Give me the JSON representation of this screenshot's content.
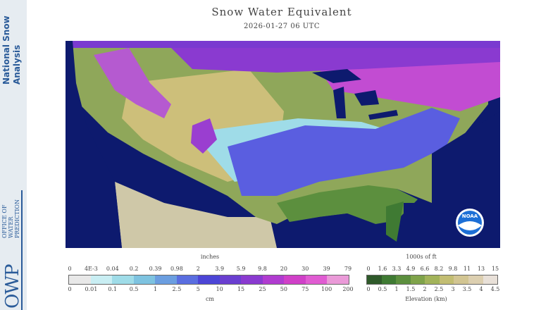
{
  "header": {
    "title": "Snow Water Equivalent",
    "timestamp": "2026-01-27 06 UTC"
  },
  "sidebar": {
    "brand_line1": "National Snow",
    "brand_line2": "Analysis",
    "owp_letters": "OWP",
    "owp_words": [
      "OFFICE OF",
      "WATER",
      "PREDICTION"
    ]
  },
  "logo": {
    "text": "NOAA"
  },
  "swe_legend": {
    "top_unit": "inches",
    "bottom_unit": "cm",
    "inch_ticks": [
      "0",
      "4E-3",
      "0.04",
      "0.2",
      "0.39",
      "0.98",
      "2",
      "3.9",
      "5.9",
      "9.8",
      "20",
      "30",
      "39",
      "79"
    ],
    "cm_ticks": [
      "0",
      "0.01",
      "0.1",
      "0.5",
      "1",
      "2.5",
      "5",
      "10",
      "15",
      "25",
      "50",
      "75",
      "100",
      "200"
    ],
    "colors": [
      "#e8e8e8",
      "#c9eef3",
      "#9fdce8",
      "#7ec3e0",
      "#6b9ee0",
      "#5a6ee0",
      "#4c45d6",
      "#6a3fd0",
      "#8a3ad0",
      "#b03cd0",
      "#d040c8",
      "#e05cd2",
      "#ea9ad8"
    ]
  },
  "elev_legend": {
    "top_unit": "1000s of ft",
    "bottom_unit": "Elevation (km)",
    "ft_ticks": [
      "0",
      "1.6",
      "3.3",
      "4.9",
      "6.6",
      "8.2",
      "9.8",
      "11",
      "13",
      "15"
    ],
    "km_ticks": [
      "0",
      "0.5",
      "1",
      "1.5",
      "2",
      "2.5",
      "3",
      "3.5",
      "4",
      "4.5"
    ],
    "colors": [
      "#2f5a2a",
      "#3f7a33",
      "#5c8f3e",
      "#7fa34a",
      "#a2b35a",
      "#c2bd72",
      "#d2c592",
      "#dccfb0",
      "#e8e0d8"
    ]
  }
}
